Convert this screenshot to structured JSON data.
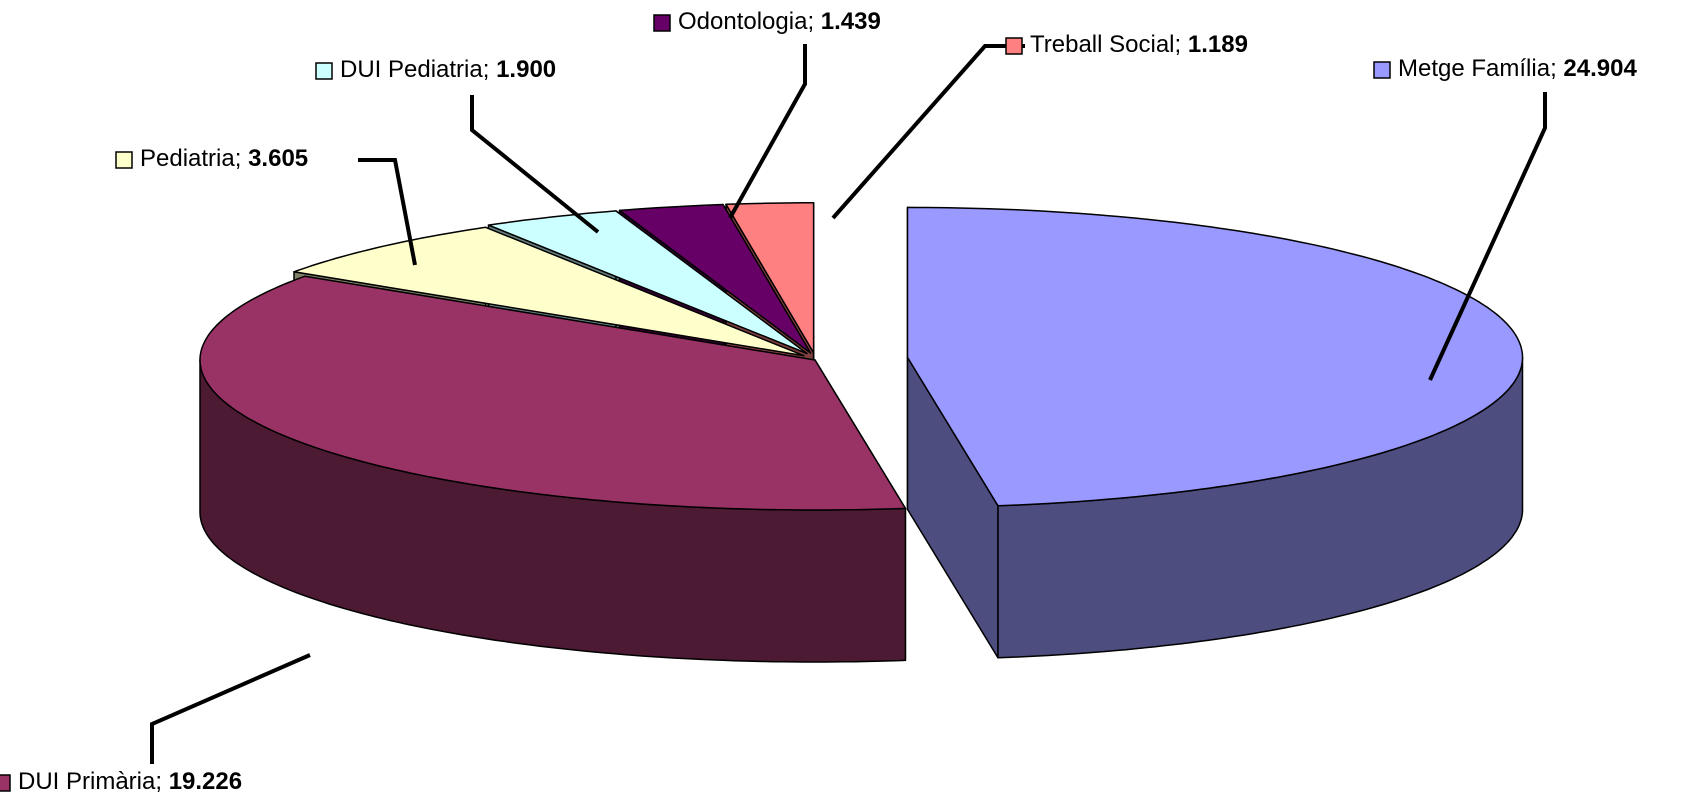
{
  "chart_data": {
    "type": "pie3d",
    "categories": [
      "Metge Família",
      "DUI Primària",
      "Pediatria",
      "DUI Pediatria",
      "Odontologia",
      "Treball Social"
    ],
    "values": [
      24904,
      19226,
      3605,
      1900,
      1439,
      1189
    ],
    "value_labels": [
      "24.904",
      "19.226",
      "3.605",
      "1.900",
      "1.439",
      "1.189"
    ],
    "label_separator": "; ",
    "colors": [
      "#9999ff",
      "#993366",
      "#ffffcc",
      "#ccffff",
      "#660066",
      "#ff8080"
    ]
  }
}
